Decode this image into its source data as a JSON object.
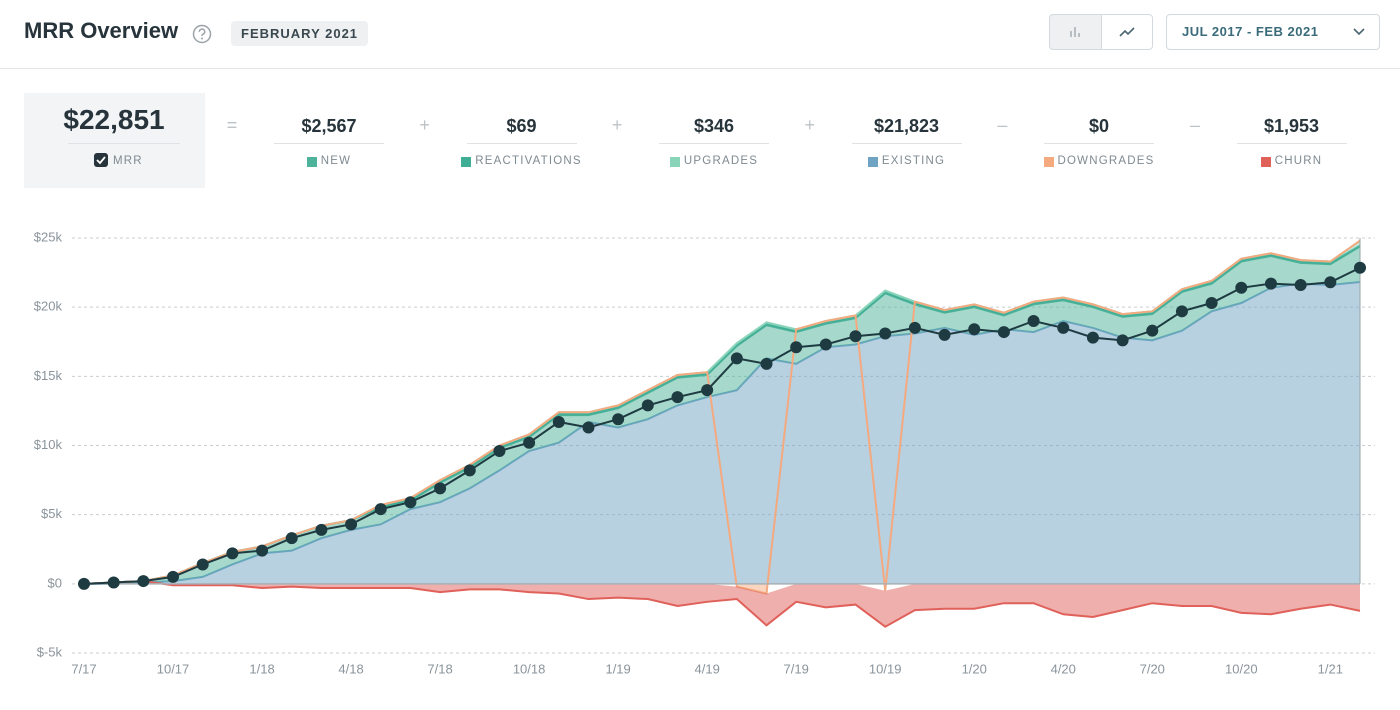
{
  "header": {
    "title": "MRR Overview",
    "period": "FEBRUARY 2021",
    "date_range": "JUL 2017 - FEB 2021"
  },
  "summary": {
    "mrr": "$22,851",
    "items": [
      {
        "operator": "=",
        "value": "$2,567"
      },
      {
        "operator": "+",
        "value": "$69"
      },
      {
        "operator": "+",
        "value": "$346"
      },
      {
        "operator": "+",
        "value": "$21,823"
      },
      {
        "operator": "–",
        "value": "$0"
      },
      {
        "operator": "–",
        "value": "$1,953"
      }
    ]
  },
  "chart_data": {
    "type": "area",
    "categories": [
      "7/17",
      null,
      null,
      "10/17",
      null,
      null,
      "1/18",
      null,
      null,
      "4/18",
      null,
      null,
      "7/18",
      null,
      null,
      "10/18",
      null,
      null,
      "1/19",
      null,
      null,
      "4/19",
      null,
      null,
      "7/19",
      null,
      null,
      "10/19",
      null,
      null,
      "1/20",
      null,
      null,
      "4/20",
      null,
      null,
      "7/20",
      null,
      null,
      "10/20",
      null,
      null,
      "1/21",
      null
    ],
    "series": [
      {
        "name": "NEW",
        "color": "#4db39a",
        "values": [
          0,
          100,
          100,
          400,
          1000,
          900,
          500,
          1100,
          900,
          700,
          1200,
          600,
          1400,
          1500,
          1600,
          1000,
          2000,
          500,
          1400,
          1900,
          2000,
          1600,
          3200,
          2400,
          2300,
          1700,
          1900,
          3100,
          2100,
          1100,
          2000,
          1000,
          2000,
          1500,
          1500,
          1500,
          1900,
          2800,
          2000,
          3000,
          2300,
          1500,
          1500,
          2567
        ]
      },
      {
        "name": "REACTIVATIONS",
        "color": "#3fae97",
        "values": [
          0,
          0,
          0,
          0,
          0,
          0,
          0,
          0,
          0,
          0,
          100,
          100,
          100,
          100,
          100,
          100,
          100,
          100,
          100,
          100,
          100,
          100,
          100,
          100,
          100,
          100,
          100,
          100,
          100,
          100,
          100,
          100,
          100,
          100,
          100,
          100,
          100,
          100,
          100,
          100,
          100,
          100,
          100,
          69
        ]
      },
      {
        "name": "UPGRADES",
        "color": "#8ad4b9",
        "values": [
          0,
          0,
          0,
          0,
          0,
          0,
          0,
          0,
          0,
          0,
          100,
          100,
          100,
          100,
          100,
          100,
          100,
          100,
          100,
          100,
          100,
          100,
          100,
          100,
          100,
          100,
          100,
          100,
          100,
          100,
          100,
          100,
          100,
          100,
          100,
          100,
          100,
          100,
          100,
          100,
          100,
          100,
          100,
          346
        ]
      },
      {
        "name": "EXISTING",
        "color": "#6fa3c4",
        "values": [
          0,
          0,
          100,
          200,
          500,
          1400,
          2200,
          2400,
          3300,
          3900,
          4300,
          5400,
          5900,
          6900,
          8200,
          9600,
          10200,
          11700,
          11300,
          11900,
          12900,
          13500,
          14000,
          16300,
          15900,
          17100,
          17300,
          17900,
          18100,
          18500,
          18000,
          18400,
          18200,
          19000,
          18500,
          17800,
          17600,
          18300,
          19700,
          20300,
          21400,
          21700,
          21600,
          21823
        ]
      },
      {
        "name": "DOWNGRADES",
        "color": "#f4a97f",
        "values": [
          0,
          0,
          0,
          0,
          0,
          0,
          0,
          0,
          0,
          0,
          0,
          0,
          0,
          0,
          0,
          0,
          0,
          0,
          0,
          0,
          0,
          0,
          -200,
          -700,
          0,
          0,
          0,
          -500,
          0,
          0,
          0,
          0,
          0,
          0,
          0,
          0,
          0,
          0,
          0,
          0,
          0,
          0,
          0,
          0
        ]
      },
      {
        "name": "CHURN",
        "color": "#e0605a",
        "values": [
          0,
          0,
          0,
          -100,
          -100,
          -100,
          -300,
          -200,
          -300,
          -300,
          -300,
          -300,
          -600,
          -400,
          -400,
          -600,
          -700,
          -1100,
          -1000,
          -1100,
          -1600,
          -1300,
          -900,
          -2300,
          -1300,
          -1700,
          -1500,
          -2600,
          -1900,
          -1800,
          -1800,
          -1400,
          -1400,
          -2200,
          -2400,
          -1900,
          -1400,
          -1600,
          -1600,
          -2100,
          -2200,
          -1800,
          -1500,
          -1953
        ]
      },
      {
        "name": "MRR",
        "color": "#1f3b42",
        "type": "line",
        "values": [
          0,
          100,
          200,
          500,
          1400,
          2200,
          2400,
          3300,
          3900,
          4300,
          5400,
          5900,
          6900,
          8200,
          9600,
          10200,
          11700,
          11300,
          11900,
          12900,
          13500,
          14000,
          16300,
          15900,
          17100,
          17300,
          17900,
          18100,
          18500,
          18000,
          18400,
          18200,
          19000,
          18500,
          17800,
          17600,
          18300,
          19700,
          20300,
          21400,
          21700,
          21600,
          21800,
          22851
        ]
      }
    ],
    "ylim": [
      -5000,
      25000
    ],
    "yticks": [
      {
        "value": -5000,
        "label": "$-5k"
      },
      {
        "value": 0,
        "label": "$0"
      },
      {
        "value": 5000,
        "label": "$5k"
      },
      {
        "value": 10000,
        "label": "$10k"
      },
      {
        "value": 15000,
        "label": "$15k"
      },
      {
        "value": 20000,
        "label": "$20k"
      },
      {
        "value": 25000,
        "label": "$25k"
      }
    ],
    "grid": true
  }
}
